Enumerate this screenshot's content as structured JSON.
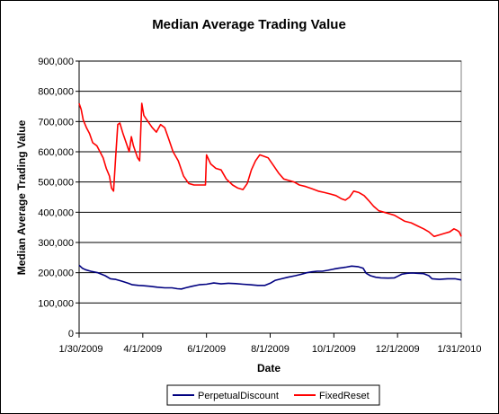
{
  "chart_data": {
    "type": "line",
    "title": "Median Average Trading Value",
    "xlabel": "Date",
    "ylabel": "Median Average Trading Value",
    "ylim": [
      0,
      900000
    ],
    "xlim": [
      "2009-01-30",
      "2010-01-31"
    ],
    "grid": "horizontal major gridlines",
    "legend_position": "bottom",
    "y_ticks": [
      0,
      100000,
      200000,
      300000,
      400000,
      500000,
      600000,
      700000,
      800000,
      900000
    ],
    "y_tick_labels": [
      "0",
      "100,000",
      "200,000",
      "300,000",
      "400,000",
      "500,000",
      "600,000",
      "700,000",
      "800,000",
      "900,000"
    ],
    "x_ticks": [
      "2009-01-30",
      "2009-04-01",
      "2009-06-01",
      "2009-08-01",
      "2009-10-01",
      "2009-12-01",
      "2010-01-31"
    ],
    "x_tick_labels": [
      "1/30/2009",
      "4/1/2009",
      "6/1/2009",
      "8/1/2009",
      "10/1/2009",
      "12/1/2009",
      "1/31/2010"
    ],
    "series": [
      {
        "name": "PerpetualDiscount",
        "color": "#000080",
        "points": [
          [
            "2009-01-30",
            225000
          ],
          [
            "2009-02-02",
            215000
          ],
          [
            "2009-02-05",
            210000
          ],
          [
            "2009-02-10",
            205000
          ],
          [
            "2009-02-17",
            200000
          ],
          [
            "2009-02-24",
            190000
          ],
          [
            "2009-03-01",
            180000
          ],
          [
            "2009-03-06",
            178000
          ],
          [
            "2009-03-12",
            172000
          ],
          [
            "2009-03-18",
            165000
          ],
          [
            "2009-03-22",
            160000
          ],
          [
            "2009-03-28",
            158000
          ],
          [
            "2009-04-01",
            157000
          ],
          [
            "2009-04-08",
            155000
          ],
          [
            "2009-04-15",
            152000
          ],
          [
            "2009-04-22",
            150000
          ],
          [
            "2009-04-29",
            150000
          ],
          [
            "2009-05-04",
            147000
          ],
          [
            "2009-05-08",
            146000
          ],
          [
            "2009-05-12",
            150000
          ],
          [
            "2009-05-18",
            155000
          ],
          [
            "2009-05-25",
            160000
          ],
          [
            "2009-06-01",
            162000
          ],
          [
            "2009-06-08",
            166000
          ],
          [
            "2009-06-15",
            163000
          ],
          [
            "2009-06-22",
            165000
          ],
          [
            "2009-06-29",
            164000
          ],
          [
            "2009-07-06",
            162000
          ],
          [
            "2009-07-13",
            160000
          ],
          [
            "2009-07-20",
            158000
          ],
          [
            "2009-07-27",
            158000
          ],
          [
            "2009-08-01",
            165000
          ],
          [
            "2009-08-06",
            175000
          ],
          [
            "2009-08-12",
            180000
          ],
          [
            "2009-08-18",
            185000
          ],
          [
            "2009-08-25",
            190000
          ],
          [
            "2009-08-31",
            195000
          ],
          [
            "2009-09-05",
            200000
          ],
          [
            "2009-09-10",
            203000
          ],
          [
            "2009-09-15",
            205000
          ],
          [
            "2009-09-20",
            205000
          ],
          [
            "2009-09-25",
            208000
          ],
          [
            "2009-10-01",
            212000
          ],
          [
            "2009-10-06",
            215000
          ],
          [
            "2009-10-12",
            218000
          ],
          [
            "2009-10-18",
            222000
          ],
          [
            "2009-10-24",
            220000
          ],
          [
            "2009-10-29",
            215000
          ],
          [
            "2009-11-01",
            198000
          ],
          [
            "2009-11-05",
            190000
          ],
          [
            "2009-11-10",
            185000
          ],
          [
            "2009-11-15",
            183000
          ],
          [
            "2009-11-22",
            182000
          ],
          [
            "2009-11-28",
            183000
          ],
          [
            "2009-12-01",
            188000
          ],
          [
            "2009-12-05",
            195000
          ],
          [
            "2009-12-10",
            198000
          ],
          [
            "2009-12-15",
            199000
          ],
          [
            "2009-12-20",
            198000
          ],
          [
            "2009-12-26",
            197000
          ],
          [
            "2009-12-31",
            190000
          ],
          [
            "2010-01-03",
            180000
          ],
          [
            "2010-01-10",
            178000
          ],
          [
            "2010-01-18",
            180000
          ],
          [
            "2010-01-25",
            180000
          ],
          [
            "2010-01-31",
            176000
          ]
        ]
      },
      {
        "name": "FixedReset",
        "color": "#ff0000",
        "points": [
          [
            "2009-01-30",
            760000
          ],
          [
            "2009-02-01",
            740000
          ],
          [
            "2009-02-03",
            705000
          ],
          [
            "2009-02-06",
            680000
          ],
          [
            "2009-02-09",
            660000
          ],
          [
            "2009-02-12",
            630000
          ],
          [
            "2009-02-16",
            620000
          ],
          [
            "2009-02-19",
            600000
          ],
          [
            "2009-02-22",
            580000
          ],
          [
            "2009-02-25",
            545000
          ],
          [
            "2009-02-28",
            520000
          ],
          [
            "2009-03-02",
            480000
          ],
          [
            "2009-03-04",
            470000
          ],
          [
            "2009-03-06",
            580000
          ],
          [
            "2009-03-08",
            690000
          ],
          [
            "2009-03-10",
            695000
          ],
          [
            "2009-03-13",
            660000
          ],
          [
            "2009-03-16",
            630000
          ],
          [
            "2009-03-19",
            600000
          ],
          [
            "2009-03-21",
            650000
          ],
          [
            "2009-03-23",
            620000
          ],
          [
            "2009-03-25",
            600000
          ],
          [
            "2009-03-27",
            580000
          ],
          [
            "2009-03-29",
            570000
          ],
          [
            "2009-03-31",
            760000
          ],
          [
            "2009-04-02",
            720000
          ],
          [
            "2009-04-06",
            700000
          ],
          [
            "2009-04-10",
            680000
          ],
          [
            "2009-04-14",
            665000
          ],
          [
            "2009-04-18",
            690000
          ],
          [
            "2009-04-22",
            680000
          ],
          [
            "2009-04-26",
            640000
          ],
          [
            "2009-04-30",
            600000
          ],
          [
            "2009-05-05",
            570000
          ],
          [
            "2009-05-10",
            520000
          ],
          [
            "2009-05-15",
            495000
          ],
          [
            "2009-05-20",
            490000
          ],
          [
            "2009-05-26",
            490000
          ],
          [
            "2009-05-31",
            490000
          ],
          [
            "2009-06-01",
            590000
          ],
          [
            "2009-06-05",
            560000
          ],
          [
            "2009-06-10",
            545000
          ],
          [
            "2009-06-15",
            540000
          ],
          [
            "2009-06-20",
            510000
          ],
          [
            "2009-06-26",
            490000
          ],
          [
            "2009-07-01",
            480000
          ],
          [
            "2009-07-06",
            475000
          ],
          [
            "2009-07-10",
            495000
          ],
          [
            "2009-07-14",
            540000
          ],
          [
            "2009-07-18",
            570000
          ],
          [
            "2009-07-22",
            590000
          ],
          [
            "2009-07-26",
            585000
          ],
          [
            "2009-07-30",
            580000
          ],
          [
            "2009-08-04",
            555000
          ],
          [
            "2009-08-09",
            530000
          ],
          [
            "2009-08-14",
            510000
          ],
          [
            "2009-08-19",
            505000
          ],
          [
            "2009-08-24",
            500000
          ],
          [
            "2009-08-29",
            490000
          ],
          [
            "2009-09-04",
            485000
          ],
          [
            "2009-09-10",
            478000
          ],
          [
            "2009-09-16",
            470000
          ],
          [
            "2009-09-22",
            465000
          ],
          [
            "2009-09-28",
            460000
          ],
          [
            "2009-10-03",
            455000
          ],
          [
            "2009-10-08",
            445000
          ],
          [
            "2009-10-12",
            440000
          ],
          [
            "2009-10-16",
            450000
          ],
          [
            "2009-10-20",
            470000
          ],
          [
            "2009-10-25",
            465000
          ],
          [
            "2009-10-30",
            455000
          ],
          [
            "2009-11-03",
            440000
          ],
          [
            "2009-11-08",
            420000
          ],
          [
            "2009-11-13",
            405000
          ],
          [
            "2009-11-18",
            400000
          ],
          [
            "2009-11-23",
            395000
          ],
          [
            "2009-11-28",
            390000
          ],
          [
            "2009-12-03",
            380000
          ],
          [
            "2009-12-08",
            370000
          ],
          [
            "2009-12-14",
            365000
          ],
          [
            "2009-12-20",
            355000
          ],
          [
            "2009-12-26",
            345000
          ],
          [
            "2009-12-31",
            335000
          ],
          [
            "2010-01-05",
            320000
          ],
          [
            "2010-01-10",
            325000
          ],
          [
            "2010-01-15",
            330000
          ],
          [
            "2010-01-20",
            335000
          ],
          [
            "2010-01-24",
            345000
          ],
          [
            "2010-01-27",
            340000
          ],
          [
            "2010-01-29",
            335000
          ],
          [
            "2010-01-31",
            320000
          ]
        ]
      }
    ]
  }
}
